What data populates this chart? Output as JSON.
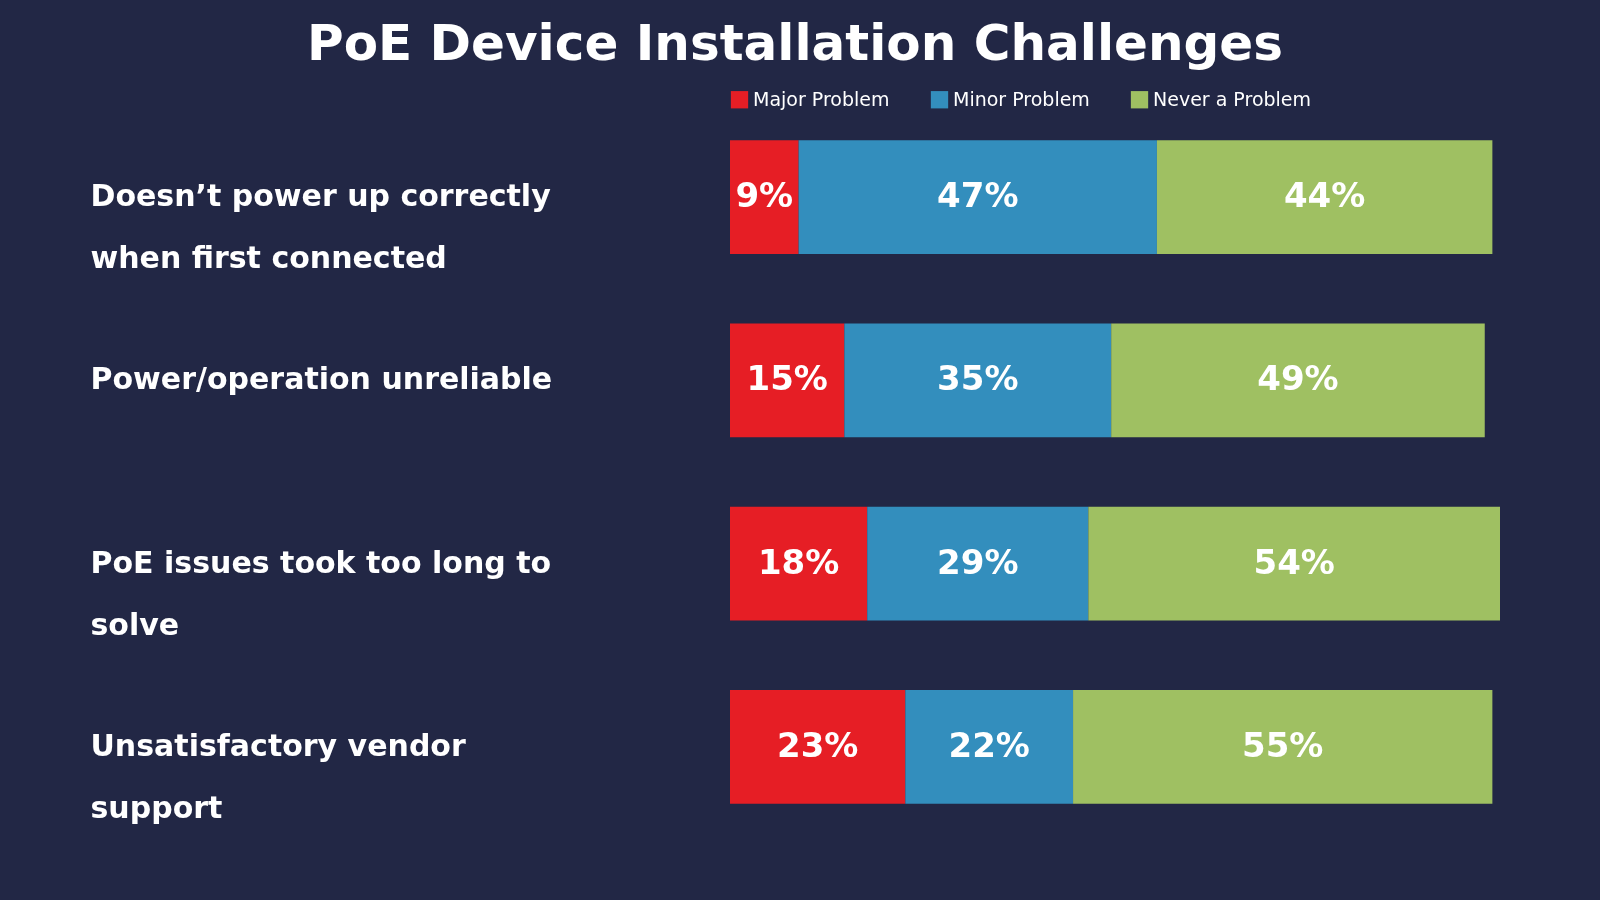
{
  "chart_data": {
    "type": "bar",
    "title": "PoE Device Installation Challenges",
    "orientation": "horizontal",
    "stacked": true,
    "legend": "top",
    "categories": [
      "Doesn’t power up correctly when first connected",
      "Power/operation unreliable",
      "PoE issues took too long to solve",
      "Unsatisfactory vendor support"
    ],
    "series": [
      {
        "name": "Major Problem",
        "color": "#e61e25",
        "values": [
          9,
          15,
          18,
          23
        ],
        "value_labels": [
          "9%",
          "15%",
          "18%",
          "23%"
        ]
      },
      {
        "name": "Minor Problem",
        "color": "#338ebd",
        "values": [
          47,
          35,
          29,
          22
        ],
        "value_labels": [
          "47%",
          "35%",
          "29%",
          "22%"
        ]
      },
      {
        "name": "Never a Problem",
        "color": "#9fc062",
        "values": [
          44,
          49,
          54,
          55
        ],
        "value_labels": [
          "44%",
          "49%",
          "54%",
          "55%"
        ]
      }
    ]
  }
}
